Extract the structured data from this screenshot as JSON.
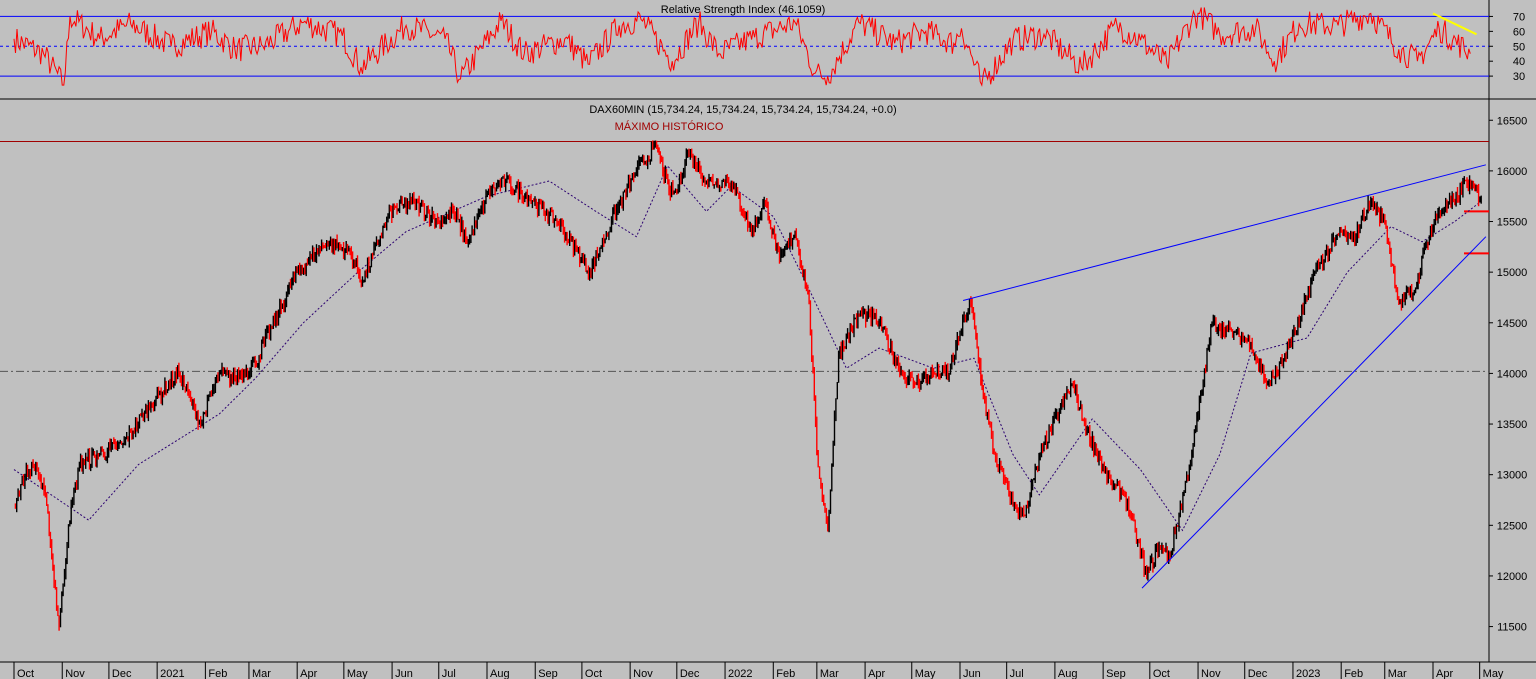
{
  "chart_data": [
    {
      "type": "line",
      "title": "Relative Strength Index (46.1059)",
      "ylim": [
        16,
        79
      ],
      "y_ticks": [
        30,
        40,
        50,
        60,
        70
      ],
      "y_tick_labels": [
        "30",
        "40",
        "50",
        "60",
        "70"
      ],
      "reference_levels": [
        30,
        50,
        70
      ],
      "series": [
        {
          "color": "#ff0000",
          "x": [
            "2020-10-01",
            "2020-10-20",
            "2020-11-02",
            "2020-11-06",
            "2020-11-25",
            "2020-12-15",
            "2021-01-10",
            "2021-02-05",
            "2021-02-20",
            "2021-03-10",
            "2021-04-05",
            "2021-04-30",
            "2021-05-12",
            "2021-06-10",
            "2021-07-05",
            "2021-07-15",
            "2021-08-10",
            "2021-08-25",
            "2021-09-20",
            "2021-10-05",
            "2021-10-25",
            "2021-11-08",
            "2021-11-28",
            "2021-12-15",
            "2021-12-28",
            "2022-01-20",
            "2022-02-15",
            "2022-02-28",
            "2022-03-08",
            "2022-03-28",
            "2022-04-20",
            "2022-05-10",
            "2022-05-28",
            "2022-06-02",
            "2022-06-15",
            "2022-07-05",
            "2022-07-25",
            "2022-08-18",
            "2022-09-10",
            "2022-09-25",
            "2022-10-12",
            "2022-10-28",
            "2022-11-02",
            "2022-11-15",
            "2022-12-08",
            "2022-12-20",
            "2023-01-05",
            "2023-01-30",
            "2023-02-20",
            "2023-03-10",
            "2023-03-22",
            "2023-04-05",
            "2023-04-25"
          ],
          "values": [
            55,
            45,
            24,
            70,
            55,
            65,
            50,
            60,
            48,
            50,
            66,
            57,
            36,
            64,
            55,
            28,
            67,
            45,
            55,
            38,
            64,
            68,
            40,
            66,
            45,
            56,
            66,
            32,
            30,
            66,
            52,
            60,
            52,
            62,
            24,
            54,
            58,
            36,
            64,
            54,
            38,
            68,
            72,
            58,
            62,
            40,
            65,
            64,
            72,
            48,
            40,
            62,
            45
          ]
        },
        {
          "name": "",
          "color": "#ffff00",
          "x": [
            "2023-04-01",
            "2023-04-29"
          ],
          "values": [
            72,
            58
          ]
        }
      ]
    },
    {
      "type": "line",
      "title": "DAX60MIN (15,734.24, 15,734.24, 15,734.24, 15,734.24, +0.0)",
      "ylim": [
        11160,
        16700
      ],
      "y_ticks": [
        11500,
        12000,
        12500,
        13000,
        13500,
        14000,
        14500,
        15000,
        15500,
        16000,
        16500
      ],
      "y_tick_labels": [
        "11500",
        "12000",
        "12500",
        "13000",
        "13500",
        "14000",
        "14500",
        "15000",
        "15500",
        "16000",
        "16500"
      ],
      "annotations": [
        "MÁXIMO HISTÓRICO"
      ],
      "resistance_level": 16290,
      "midline_level": 14020,
      "right_edge_marks": [
        15600,
        15185
      ],
      "x_ticks": [
        "2020-10-01",
        "2020-11-01",
        "2020-12-01",
        "2021-01-01",
        "2021-02-01",
        "2021-03-01",
        "2021-04-01",
        "2021-05-01",
        "2021-06-01",
        "2021-07-01",
        "2021-08-01",
        "2021-09-01",
        "2021-10-01",
        "2021-11-01",
        "2021-12-01",
        "2022-01-01",
        "2022-02-01",
        "2022-03-01",
        "2022-04-01",
        "2022-05-01",
        "2022-06-01",
        "2022-07-01",
        "2022-08-01",
        "2022-09-01",
        "2022-10-01",
        "2022-11-01",
        "2022-12-01",
        "2023-01-01",
        "2023-02-01",
        "2023-03-01",
        "2023-04-01",
        "2023-05-01"
      ],
      "x_tick_labels": [
        "Oct",
        "Nov",
        "Dec",
        "2021",
        "Feb",
        "Mar",
        "Apr",
        "May",
        "Jun",
        "Jul",
        "Aug",
        "Sep",
        "Oct",
        "Nov",
        "Dec",
        "2022",
        "Feb",
        "Mar",
        "Apr",
        "May",
        "Jun",
        "Jul",
        "Aug",
        "Sep",
        "Oct",
        "Nov",
        "Dec",
        "2023",
        "Feb",
        "Mar",
        "Apr",
        "May"
      ],
      "series": [
        {
          "color": "#000000",
          "x": [
            "2020-10-01",
            "2020-10-08",
            "2020-10-15",
            "2020-10-22",
            "2020-10-30",
            "2020-11-05",
            "2020-11-12",
            "2020-11-25",
            "2020-12-10",
            "2020-12-28",
            "2021-01-15",
            "2021-01-29",
            "2021-02-10",
            "2021-02-20",
            "2021-03-05",
            "2021-03-20",
            "2021-04-01",
            "2021-04-20",
            "2021-05-05",
            "2021-05-13",
            "2021-05-31",
            "2021-06-15",
            "2021-07-01",
            "2021-07-10",
            "2021-07-20",
            "2021-08-02",
            "2021-08-13",
            "2021-08-31",
            "2021-09-15",
            "2021-09-28",
            "2021-10-06",
            "2021-10-20",
            "2021-11-05",
            "2021-11-18",
            "2021-11-26",
            "2021-12-01",
            "2021-12-08",
            "2021-12-20",
            "2022-01-05",
            "2022-01-18",
            "2022-01-27",
            "2022-02-05",
            "2022-02-15",
            "2022-02-24",
            "2022-03-01",
            "2022-03-08",
            "2022-03-15",
            "2022-03-29",
            "2022-04-10",
            "2022-04-25",
            "2022-05-02",
            "2022-05-15",
            "2022-05-25",
            "2022-06-01",
            "2022-06-08",
            "2022-06-16",
            "2022-06-23",
            "2022-07-05",
            "2022-07-12",
            "2022-07-25",
            "2022-08-12",
            "2022-08-20",
            "2022-09-06",
            "2022-09-15",
            "2022-09-29",
            "2022-10-07",
            "2022-10-14",
            "2022-10-28",
            "2022-11-10",
            "2022-11-24",
            "2022-12-05",
            "2022-12-15",
            "2022-12-20",
            "2023-01-05",
            "2023-01-15",
            "2023-02-01",
            "2023-02-08",
            "2023-02-20",
            "2023-03-01",
            "2023-03-10",
            "2023-03-20",
            "2023-03-28",
            "2023-04-05",
            "2023-04-15",
            "2023-04-22",
            "2023-05-02"
          ],
          "values": [
            12700,
            13000,
            13100,
            12700,
            11500,
            12500,
            13100,
            13200,
            13300,
            13700,
            14000,
            13500,
            14000,
            13950,
            14100,
            14600,
            15000,
            15300,
            15200,
            14900,
            15600,
            15700,
            15500,
            15600,
            15300,
            15800,
            15900,
            15700,
            15500,
            15200,
            15000,
            15500,
            16000,
            16250,
            15800,
            15800,
            16200,
            15900,
            15900,
            15400,
            15700,
            15100,
            15400,
            14700,
            13200,
            12450,
            14200,
            14600,
            14500,
            14000,
            13900,
            14000,
            14000,
            14400,
            14700,
            13800,
            13200,
            12700,
            12600,
            13300,
            13900,
            13500,
            12900,
            12800,
            12000,
            12300,
            12200,
            13200,
            14500,
            14400,
            14300,
            13900,
            13950,
            14500,
            15000,
            15400,
            15300,
            15700,
            15500,
            14700,
            14800,
            15300,
            15600,
            15700,
            15900,
            15734.24
          ]
        },
        {
          "color": "#2b0070",
          "x": [
            "2020-10-01",
            "2020-11-18",
            "2020-12-20",
            "2021-02-10",
            "2021-03-05",
            "2021-04-05",
            "2021-05-10",
            "2021-06-10",
            "2021-08-01",
            "2021-09-10",
            "2021-10-10",
            "2021-11-05",
            "2021-11-25",
            "2021-12-20",
            "2022-01-05",
            "2022-02-01",
            "2022-02-25",
            "2022-03-20",
            "2022-04-10",
            "2022-05-15",
            "2022-06-10",
            "2022-07-05",
            "2022-07-22",
            "2022-08-25",
            "2022-09-25",
            "2022-10-22",
            "2022-11-15",
            "2022-12-05",
            "2023-01-10",
            "2023-02-05",
            "2023-03-05",
            "2023-03-25",
            "2023-04-15",
            "2023-05-02"
          ],
          "values": [
            13050,
            12550,
            13100,
            13600,
            13950,
            14500,
            15000,
            15400,
            15750,
            15900,
            15600,
            15350,
            16050,
            15600,
            15850,
            15550,
            14800,
            14050,
            14250,
            14050,
            14150,
            13200,
            12800,
            13550,
            13050,
            12450,
            13200,
            14200,
            14350,
            15000,
            15450,
            15300,
            15500,
            15700
          ]
        }
      ],
      "trendlines": [
        {
          "color": "#0000ff",
          "x": [
            "2022-06-03",
            "2023-05-05"
          ],
          "values": [
            14720,
            16060
          ]
        },
        {
          "color": "#0000ff",
          "x": [
            "2022-09-26",
            "2023-05-05"
          ],
          "values": [
            11880,
            15350
          ]
        }
      ]
    }
  ]
}
